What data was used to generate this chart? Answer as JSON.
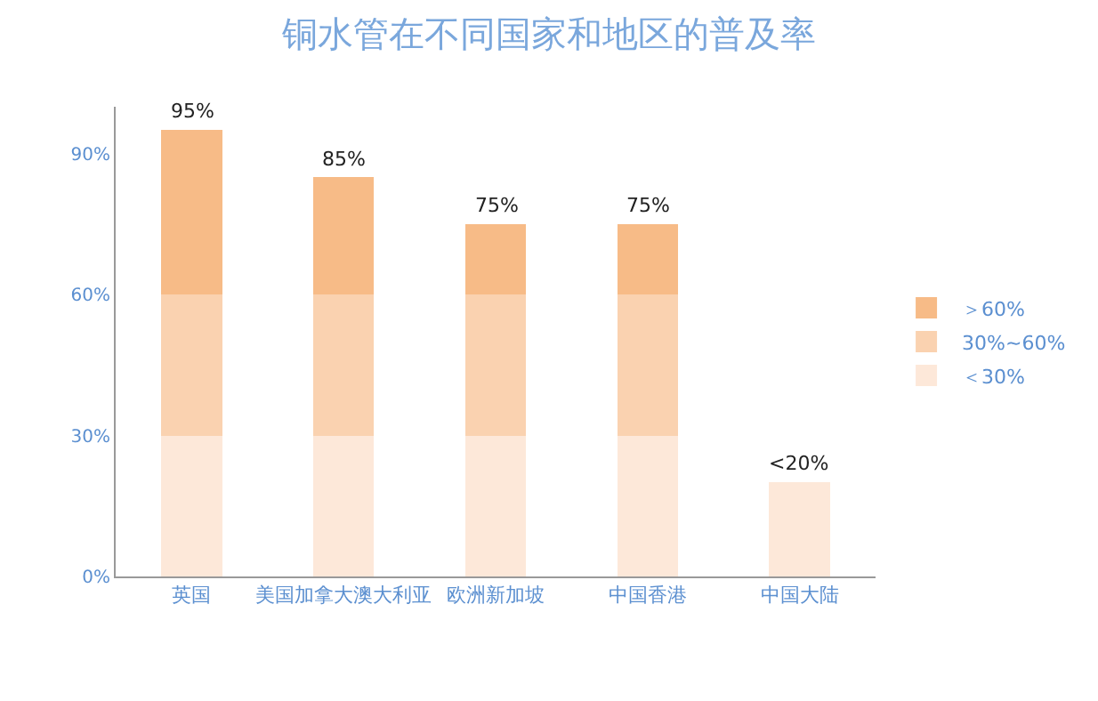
{
  "chart_data": {
    "type": "bar",
    "stacked": true,
    "title": "铜水管在不同国家和地区的普及率",
    "categories": [
      "英国",
      "美国加拿大澳大利亚",
      "欧洲新加坡",
      "中国香港",
      "中国大陆"
    ],
    "series": [
      {
        "name": "＜30%",
        "color": "#fde8d9",
        "values": [
          30,
          30,
          30,
          30,
          20
        ]
      },
      {
        "name": "30%~60%",
        "color": "#fad2b0",
        "values": [
          30,
          30,
          30,
          30,
          null
        ]
      },
      {
        "name": "＞60%",
        "color": "#f7bb87",
        "values": [
          35,
          25,
          15,
          15,
          null
        ]
      }
    ],
    "totals": [
      "95%",
      "85%",
      "75%",
      "75%",
      "<20%"
    ],
    "ylim": [
      0,
      100
    ],
    "yticks": [
      {
        "value": 0,
        "label": "0%"
      },
      {
        "value": 30,
        "label": "30%"
      },
      {
        "value": 60,
        "label": "60%"
      },
      {
        "value": 90,
        "label": "90%"
      }
    ],
    "legend": "right"
  }
}
